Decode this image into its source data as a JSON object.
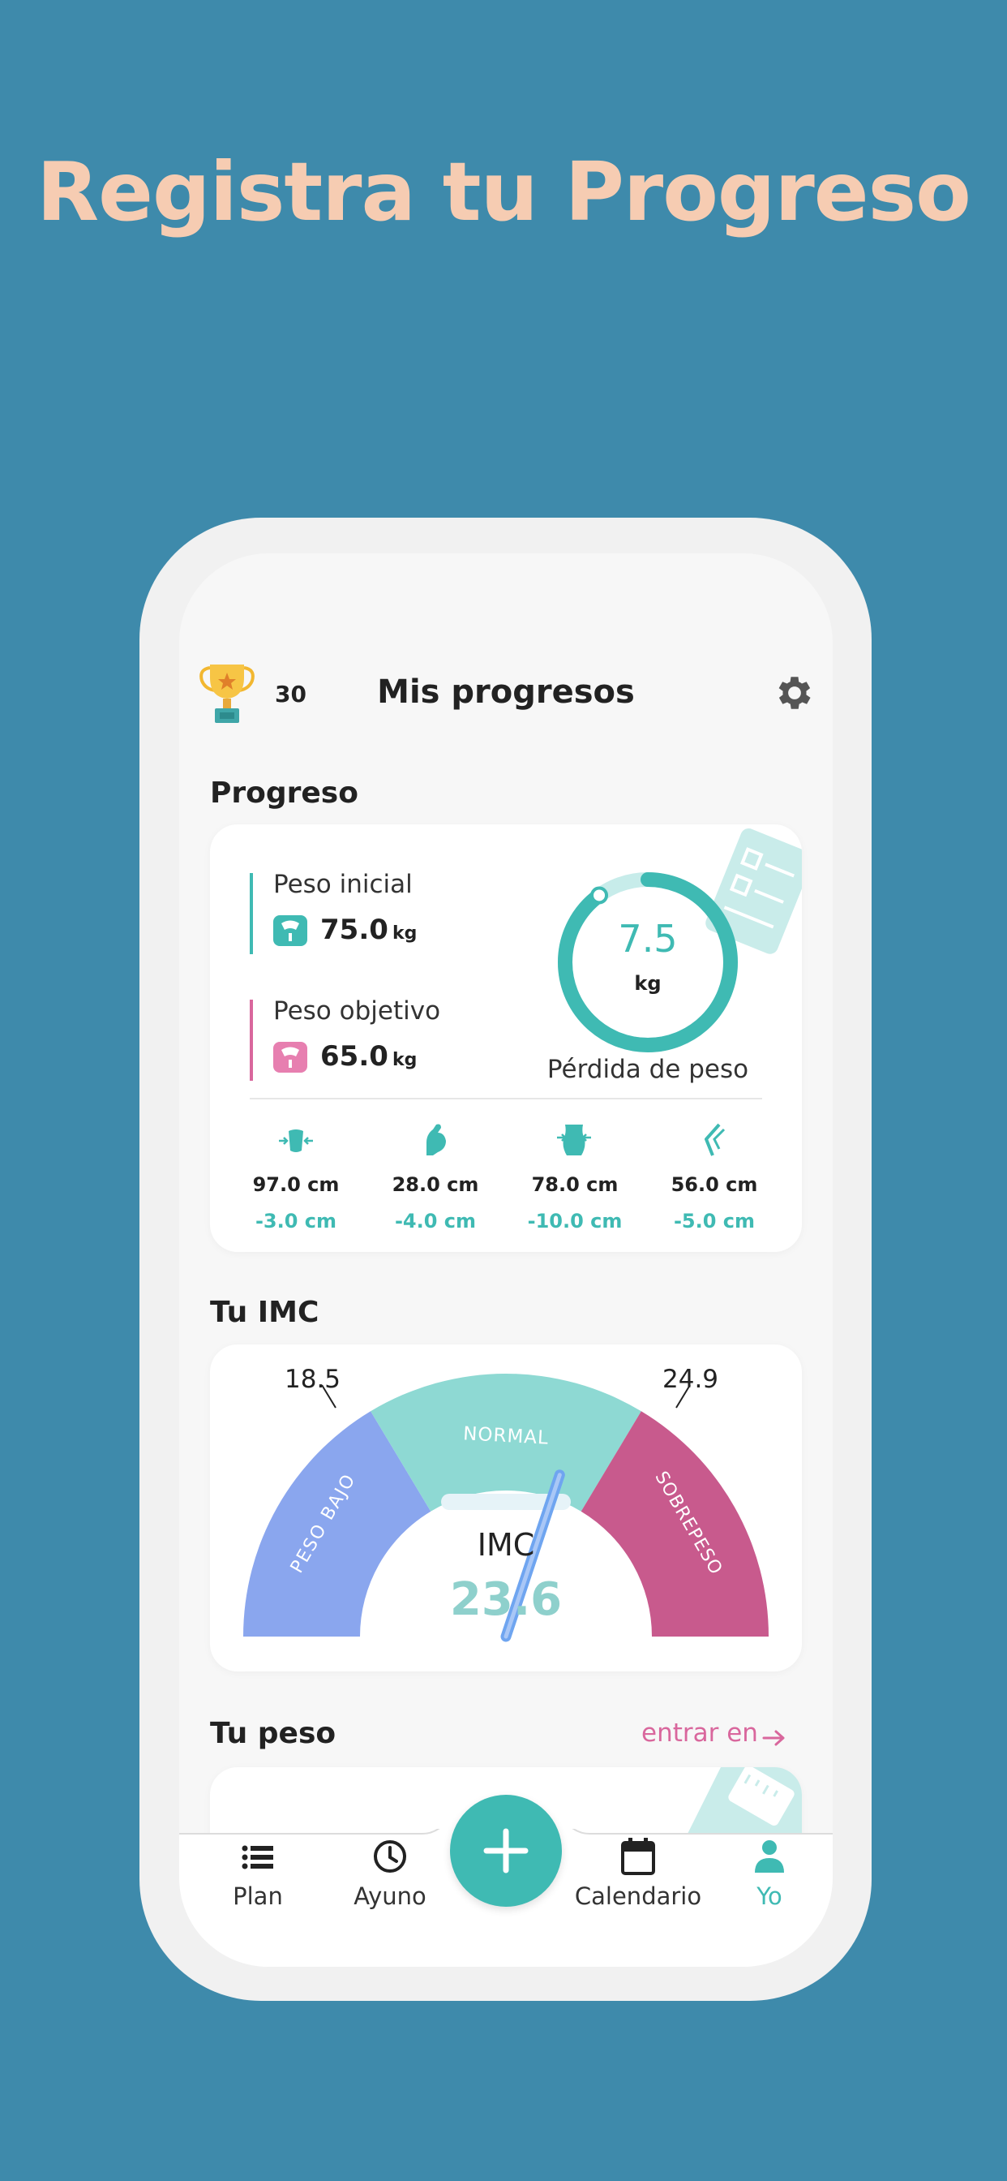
{
  "headline": "Registra tu Progreso",
  "header": {
    "title": "Mis progresos",
    "trophy_count": "30"
  },
  "progress": {
    "section_title": "Progreso",
    "initial_label": "Peso inicial",
    "initial_value": "75.0",
    "initial_unit": "kg",
    "target_label": "Peso objetivo",
    "target_value": "65.0",
    "target_unit": "kg",
    "loss_value": "7.5",
    "loss_unit": "kg",
    "loss_label": "Pérdida de peso",
    "loss_ring_fraction": 0.9,
    "measurements": [
      {
        "icon": "chest-icon",
        "value": "97.0 cm",
        "delta": "-3.0 cm"
      },
      {
        "icon": "arm-icon",
        "value": "28.0 cm",
        "delta": "-4.0 cm"
      },
      {
        "icon": "waist-icon",
        "value": "78.0 cm",
        "delta": "-10.0 cm"
      },
      {
        "icon": "thigh-icon",
        "value": "56.0 cm",
        "delta": "-5.0 cm"
      }
    ]
  },
  "bmi": {
    "section_title": "Tu IMC",
    "low_threshold": "18.5",
    "high_threshold": "24.9",
    "label_under": "PESO BAJO",
    "label_normal": "NORMAL",
    "label_over": "SOBREPESO",
    "center_label": "IMC",
    "value": "23.6",
    "value_numeric": 23.6
  },
  "weight": {
    "section_title": "Tu peso",
    "link_label": "entrar en"
  },
  "nav": {
    "items": [
      {
        "label": "Plan",
        "icon": "list-icon"
      },
      {
        "label": "Ayuno",
        "icon": "clock-icon"
      },
      {
        "label": "Calendario",
        "icon": "calendar-icon"
      },
      {
        "label": "Yo",
        "icon": "person-icon"
      }
    ],
    "active": "Yo"
  },
  "colors": {
    "background": "#3e8aab",
    "headline": "#f6ccb2",
    "teal": "#3fbab3",
    "pink": "#d9679d",
    "under": "#8aa6ee",
    "normal": "#8ed9d3",
    "over": "#c85a8d"
  }
}
